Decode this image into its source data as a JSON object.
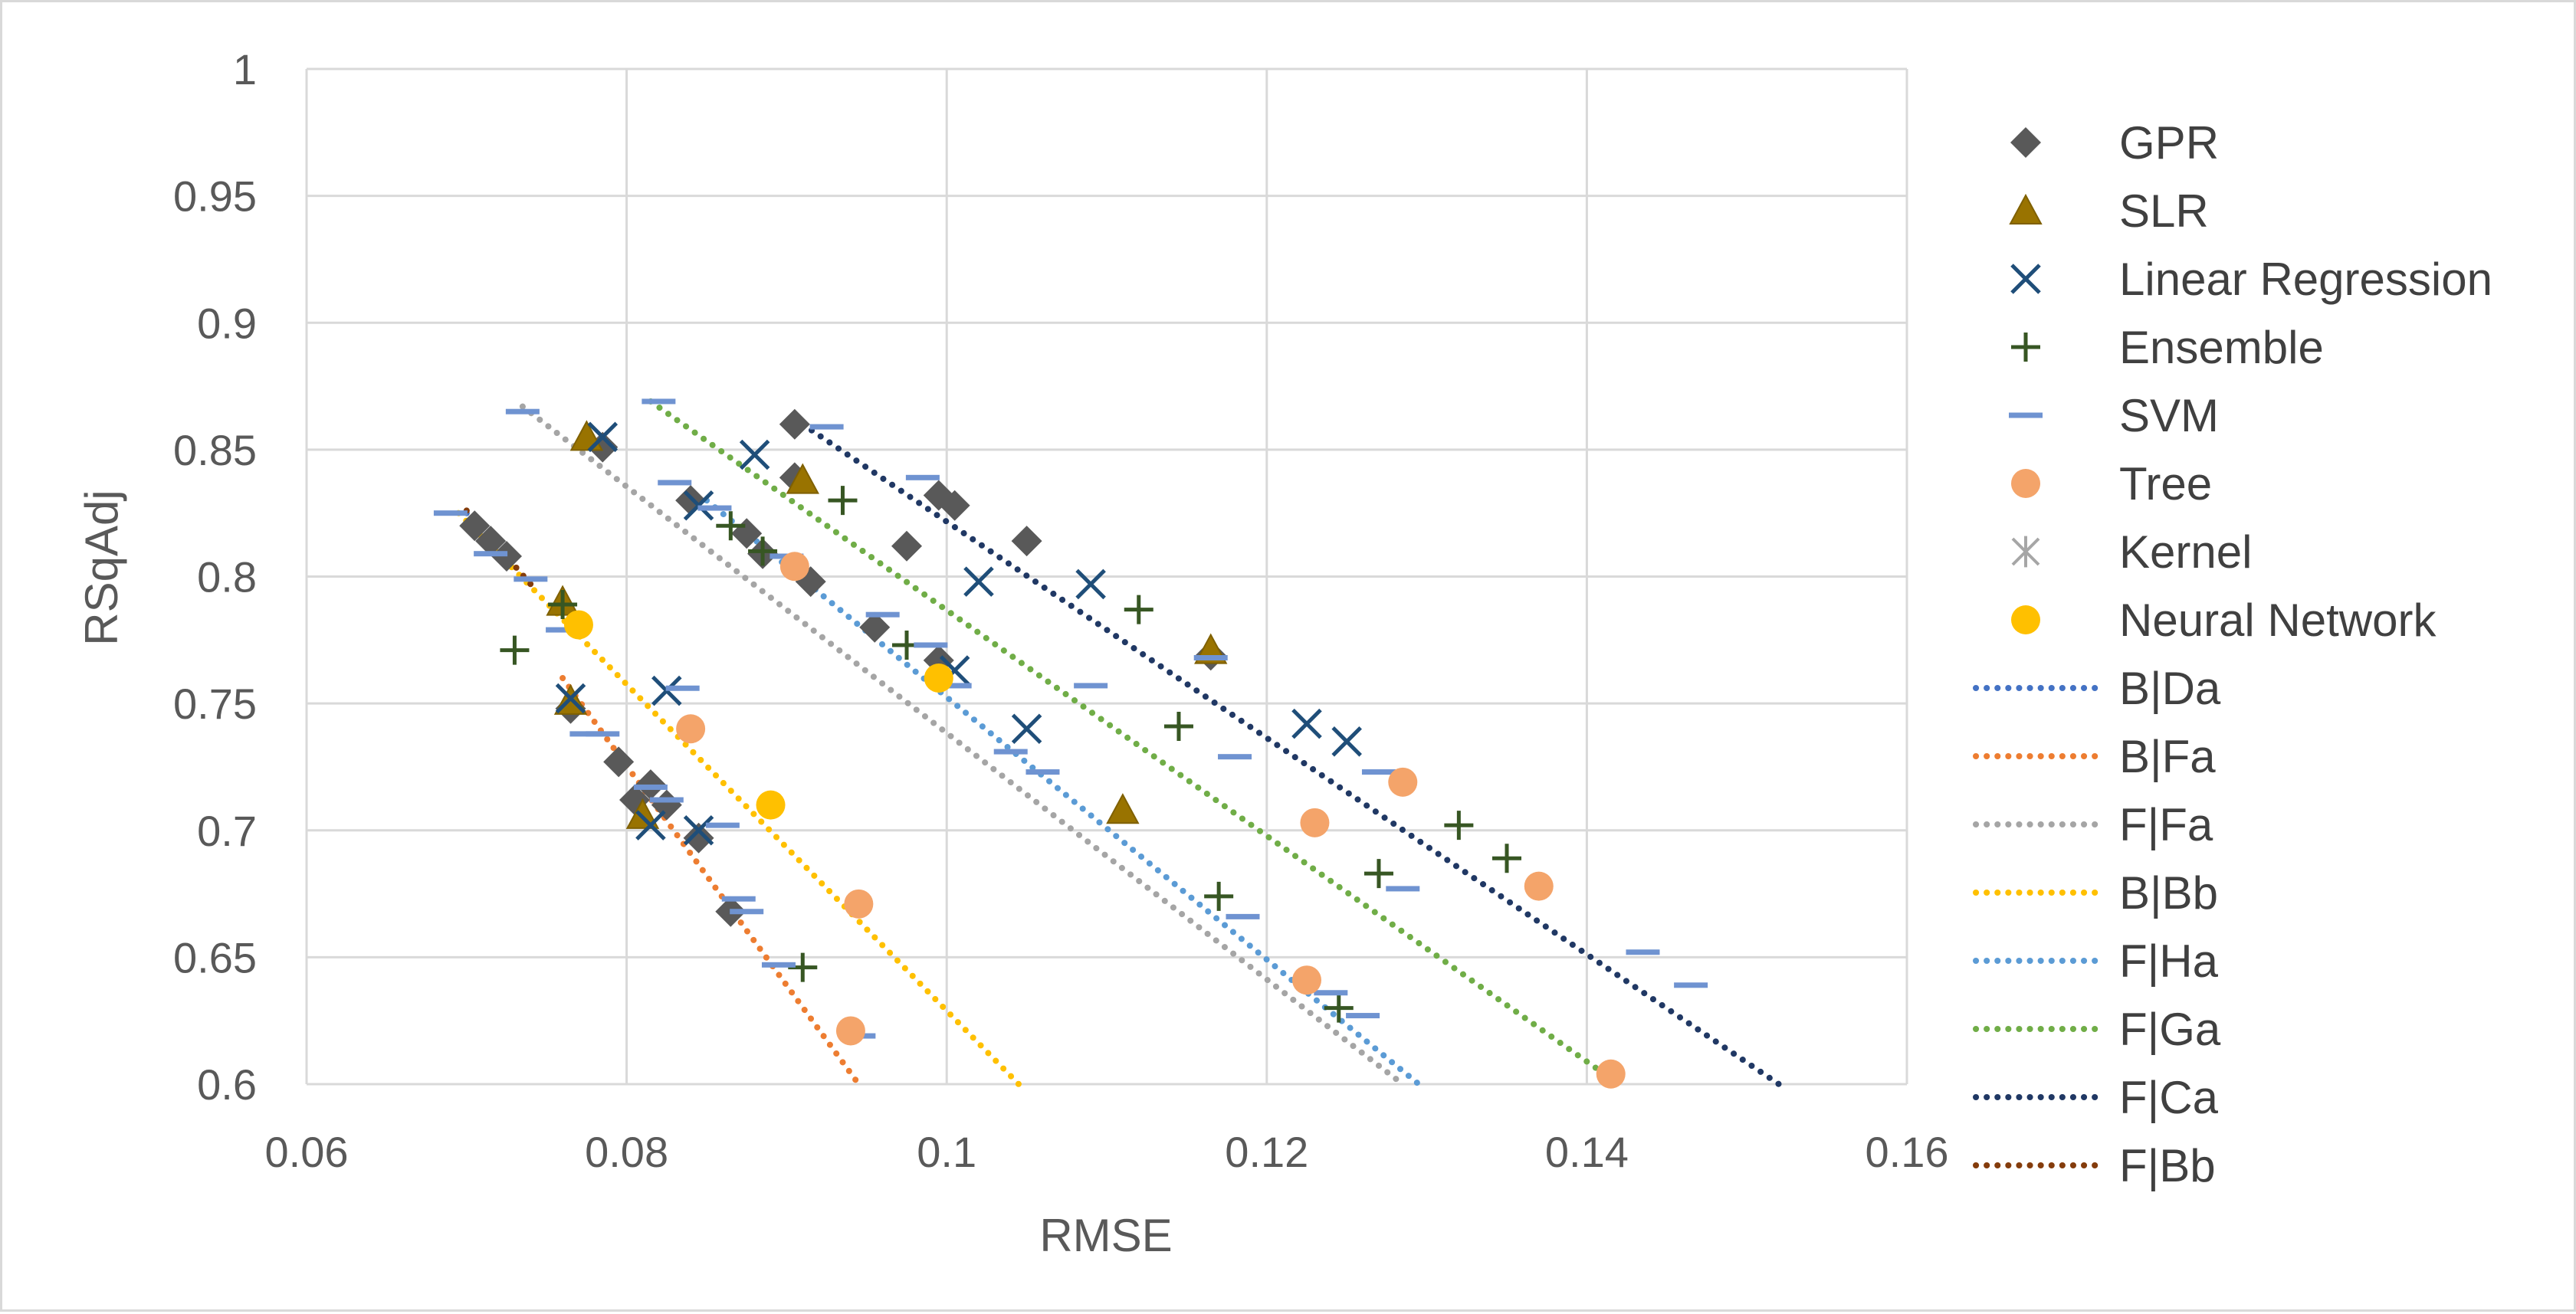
{
  "chart_data": {
    "type": "scatter",
    "xlabel": "RMSE",
    "ylabel": "RSqAdj",
    "xlim": [
      0.06,
      0.16
    ],
    "ylim": [
      0.6,
      1.0
    ],
    "x_ticks": [
      "0.06",
      "0.08",
      "0.1",
      "0.12",
      "0.14",
      "0.16"
    ],
    "y_ticks": [
      "0.6",
      "0.65",
      "0.7",
      "0.75",
      "0.8",
      "0.85",
      "0.9",
      "0.95",
      "1"
    ],
    "grid": "on",
    "legend_position": "right",
    "series": [
      {
        "name": "GPR",
        "marker": "diamond",
        "color": "#595959",
        "points": [
          [
            0.0705,
            0.82
          ],
          [
            0.0715,
            0.814
          ],
          [
            0.0725,
            0.808
          ],
          [
            0.0765,
            0.748
          ],
          [
            0.0785,
            0.851
          ],
          [
            0.0795,
            0.727
          ],
          [
            0.0805,
            0.712
          ],
          [
            0.0815,
            0.718
          ],
          [
            0.0825,
            0.71
          ],
          [
            0.0845,
            0.697
          ],
          [
            0.084,
            0.83
          ],
          [
            0.0875,
            0.817
          ],
          [
            0.0885,
            0.809
          ],
          [
            0.0915,
            0.798
          ],
          [
            0.0955,
            0.78
          ],
          [
            0.0975,
            0.812
          ],
          [
            0.0995,
            0.767
          ],
          [
            0.0865,
            0.668
          ],
          [
            0.0905,
            0.86
          ],
          [
            0.0905,
            0.839
          ],
          [
            0.0995,
            0.832
          ],
          [
            0.1005,
            0.828
          ],
          [
            0.105,
            0.814
          ],
          [
            0.1165,
            0.769
          ]
        ]
      },
      {
        "name": "SLR",
        "marker": "triangle",
        "color": "#997300",
        "points": [
          [
            0.0775,
            0.855
          ],
          [
            0.076,
            0.79
          ],
          [
            0.0765,
            0.751
          ],
          [
            0.081,
            0.706
          ],
          [
            0.091,
            0.838
          ],
          [
            0.111,
            0.708
          ],
          [
            0.1165,
            0.771
          ]
        ]
      },
      {
        "name": "Linear Regression",
        "marker": "x",
        "color": "#1f4e79",
        "points": [
          [
            0.0785,
            0.855
          ],
          [
            0.0765,
            0.752
          ],
          [
            0.0815,
            0.702
          ],
          [
            0.0825,
            0.755
          ],
          [
            0.0845,
            0.7
          ],
          [
            0.0845,
            0.828
          ],
          [
            0.088,
            0.848
          ],
          [
            0.1005,
            0.763
          ],
          [
            0.102,
            0.798
          ],
          [
            0.105,
            0.74
          ],
          [
            0.109,
            0.797
          ],
          [
            0.1225,
            0.742
          ],
          [
            0.125,
            0.735
          ]
        ]
      },
      {
        "name": "Ensemble",
        "marker": "plus",
        "color": "#375623",
        "points": [
          [
            0.073,
            0.771
          ],
          [
            0.076,
            0.789
          ],
          [
            0.0865,
            0.82
          ],
          [
            0.0885,
            0.81
          ],
          [
            0.091,
            0.646
          ],
          [
            0.0935,
            0.83
          ],
          [
            0.0975,
            0.773
          ],
          [
            0.112,
            0.787
          ],
          [
            0.1145,
            0.741
          ],
          [
            0.117,
            0.674
          ],
          [
            0.1245,
            0.63
          ],
          [
            0.127,
            0.683
          ],
          [
            0.132,
            0.702
          ],
          [
            0.135,
            0.689
          ]
        ]
      },
      {
        "name": "SVM",
        "marker": "dash",
        "color": "#6f93d1",
        "points": [
          [
            0.069,
            0.825
          ],
          [
            0.0735,
            0.865
          ],
          [
            0.0715,
            0.809
          ],
          [
            0.074,
            0.799
          ],
          [
            0.076,
            0.779
          ],
          [
            0.0775,
            0.738
          ],
          [
            0.0785,
            0.738
          ],
          [
            0.0815,
            0.717
          ],
          [
            0.0825,
            0.712
          ],
          [
            0.082,
            0.869
          ],
          [
            0.083,
            0.837
          ],
          [
            0.0835,
            0.756
          ],
          [
            0.0855,
            0.827
          ],
          [
            0.086,
            0.702
          ],
          [
            0.087,
            0.673
          ],
          [
            0.0875,
            0.668
          ],
          [
            0.0895,
            0.647
          ],
          [
            0.09,
            0.808
          ],
          [
            0.0925,
            0.859
          ],
          [
            0.0945,
            0.619
          ],
          [
            0.096,
            0.785
          ],
          [
            0.0985,
            0.839
          ],
          [
            0.099,
            0.773
          ],
          [
            0.1005,
            0.757
          ],
          [
            0.104,
            0.731
          ],
          [
            0.106,
            0.723
          ],
          [
            0.109,
            0.757
          ],
          [
            0.1165,
            0.768
          ],
          [
            0.118,
            0.729
          ],
          [
            0.1185,
            0.666
          ],
          [
            0.124,
            0.636
          ],
          [
            0.126,
            0.627
          ],
          [
            0.127,
            0.723
          ],
          [
            0.1285,
            0.677
          ],
          [
            0.1435,
            0.652
          ],
          [
            0.1465,
            0.639
          ]
        ]
      },
      {
        "name": "Tree",
        "marker": "circle",
        "color": "#f4a46a",
        "points": [
          [
            0.084,
            0.74
          ],
          [
            0.0905,
            0.804
          ],
          [
            0.094,
            0.621
          ],
          [
            0.0945,
            0.671
          ],
          [
            0.1225,
            0.641
          ],
          [
            0.123,
            0.703
          ],
          [
            0.1285,
            0.719
          ],
          [
            0.137,
            0.678
          ],
          [
            0.1415,
            0.604
          ]
        ]
      },
      {
        "name": "Kernel",
        "marker": "asterisk",
        "color": "#a6a6a6",
        "points": []
      },
      {
        "name": "Neural Network",
        "marker": "circle",
        "color": "#ffc000",
        "points": [
          [
            0.077,
            0.781
          ],
          [
            0.089,
            0.71
          ],
          [
            0.0995,
            0.76
          ]
        ]
      }
    ],
    "trendlines": [
      {
        "name": "B|Da",
        "color": "#4472c4",
        "from": [
          0.07,
          0.825
        ],
        "to": [
          0.072,
          0.808
        ]
      },
      {
        "name": "B|Fa",
        "color": "#ed7d31",
        "from": [
          0.076,
          0.76
        ],
        "to": [
          0.0945,
          0.6
        ]
      },
      {
        "name": "F|Fa",
        "color": "#a5a5a5",
        "from": [
          0.0735,
          0.867
        ],
        "to": [
          0.1285,
          0.6
        ]
      },
      {
        "name": "B|Bb",
        "color": "#ffc000",
        "from": [
          0.0695,
          0.825
        ],
        "to": [
          0.1045,
          0.6
        ]
      },
      {
        "name": "F|Ha",
        "color": "#5b9bd5",
        "from": [
          0.085,
          0.83
        ],
        "to": [
          0.1295,
          0.6
        ]
      },
      {
        "name": "F|Ga",
        "color": "#70ad47",
        "from": [
          0.0815,
          0.869
        ],
        "to": [
          0.142,
          0.6
        ]
      },
      {
        "name": "F|Ca",
        "color": "#203864",
        "from": [
          0.091,
          0.86
        ],
        "to": [
          0.152,
          0.6
        ]
      },
      {
        "name": "F|Bb",
        "color": "#843c0c",
        "from": [
          0.07,
          0.826
        ],
        "to": [
          0.074,
          0.797
        ]
      }
    ]
  }
}
